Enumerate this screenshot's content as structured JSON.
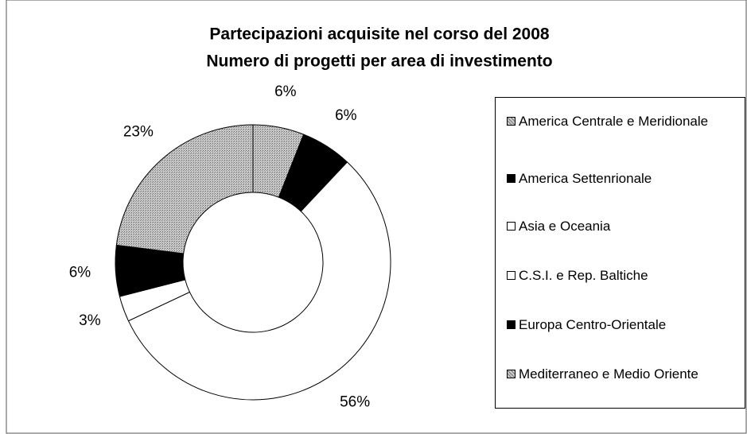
{
  "chart_data": {
    "type": "donut",
    "title": "Partecipazioni acquisite nel corso del 2008",
    "subtitle": "Numero di progetti per area di investimento",
    "categories": [
      "America Centrale e Meridionale",
      "America Settenrionale",
      "Asia e Oceania",
      "C.S.I. e Rep. Baltiche",
      "Europa Centro-Orientale",
      "Mediterraneo e Medio Oriente"
    ],
    "values": [
      6,
      6,
      56,
      3,
      6,
      23
    ],
    "value_labels": [
      "6%",
      "6%",
      "56%",
      "3%",
      "6%",
      "23%"
    ],
    "colors": [
      "#b4b4b4",
      "#000000",
      "#ffffff",
      "#ffffff",
      "#000000",
      "#b4b4b4"
    ]
  }
}
